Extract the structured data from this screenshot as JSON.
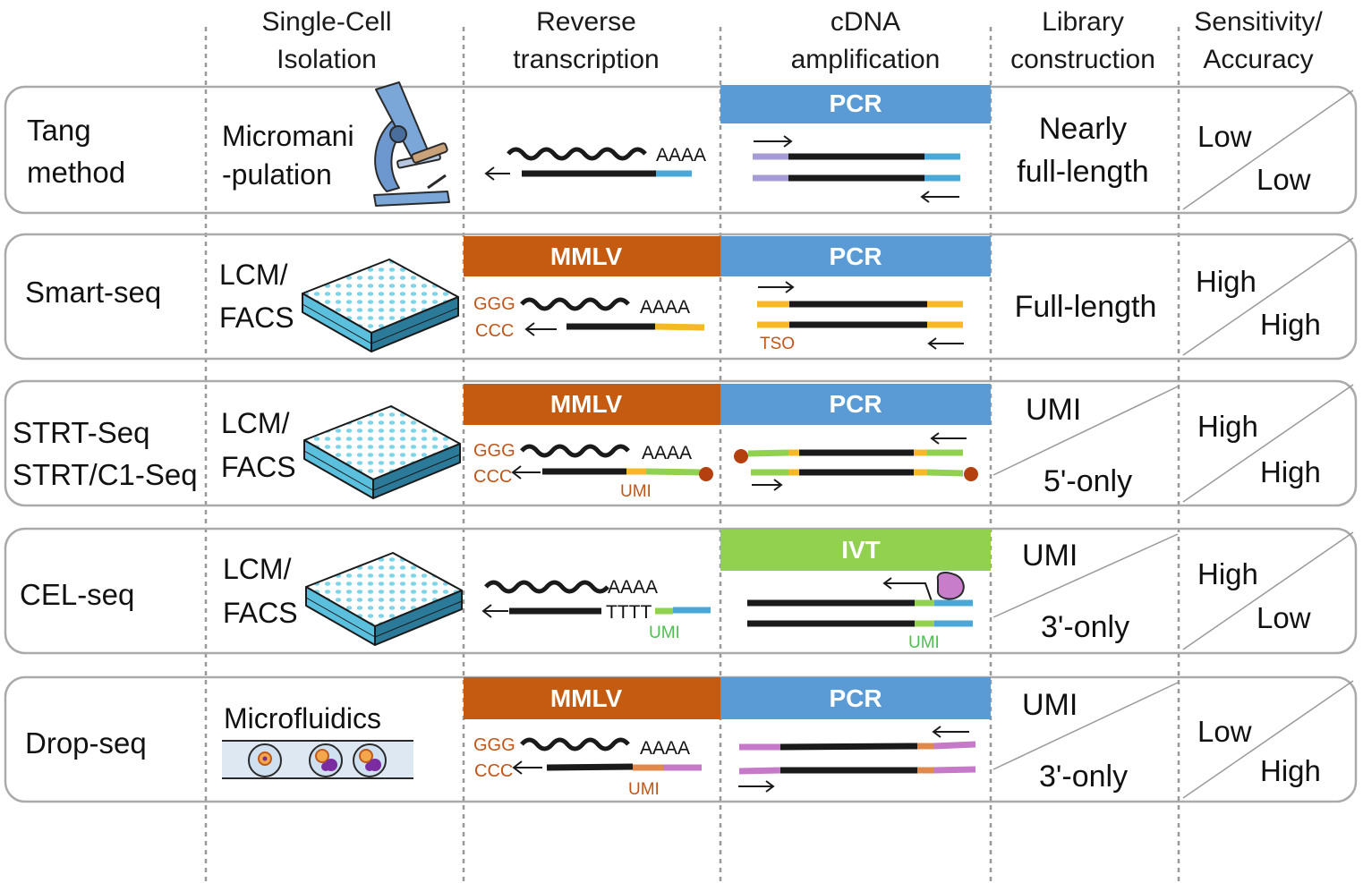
{
  "header": {
    "isolation": [
      "Single-Cell",
      "Isolation"
    ],
    "rt": [
      "Reverse",
      "transcription"
    ],
    "amp": [
      "cDNA",
      "amplification"
    ],
    "lib": [
      "Library",
      "construction"
    ],
    "sens": [
      "Sensitivity/",
      "Accuracy"
    ]
  },
  "colors": {
    "mmlv": "#c55a11",
    "pcr": "#5b9bd5",
    "ivt": "#92d050",
    "orange_text": "#c0561a",
    "umi_green": "#4fc04f",
    "umi_orange": "#c0561a"
  },
  "rows": [
    {
      "method": [
        "Tang",
        "method"
      ],
      "isolation": [
        "Micromani",
        "-pulation"
      ],
      "isolation_icon": "microscope-icon",
      "rt_band": "",
      "amp_band": "PCR",
      "rt_seq": {
        "polyA": "AAAA"
      },
      "lib": [
        "Nearly",
        "full-length"
      ],
      "sens": "Low",
      "acc": "Low"
    },
    {
      "method": [
        "Smart-seq"
      ],
      "isolation": [
        "LCM/",
        "FACS"
      ],
      "isolation_icon": "well-plate-icon",
      "rt_band": "MMLV",
      "amp_band": "PCR",
      "rt_seq": {
        "ggg": "GGG",
        "ccc": "CCC",
        "polyA": "AAAA"
      },
      "amp_label": "TSO",
      "lib": [
        "Full-length"
      ],
      "sens": "High",
      "acc": "High"
    },
    {
      "method": [
        "STRT-Seq",
        "STRT/C1-Seq"
      ],
      "isolation": [
        "LCM/",
        "FACS"
      ],
      "isolation_icon": "well-plate-icon",
      "rt_band": "MMLV",
      "amp_band": "PCR",
      "rt_seq": {
        "ggg": "GGG",
        "ccc": "CCC",
        "polyA": "AAAA",
        "umi": "UMI"
      },
      "lib_split": [
        "UMI",
        "5'-only"
      ],
      "sens": "High",
      "acc": "High"
    },
    {
      "method": [
        "CEL-seq"
      ],
      "isolation": [
        "LCM/",
        "FACS"
      ],
      "isolation_icon": "well-plate-icon",
      "rt_band": "",
      "amp_band": "IVT",
      "rt_seq": {
        "polyA": "AAAA",
        "polyT": "TTTT",
        "umi": "UMI"
      },
      "amp_label": "UMI",
      "lib_split": [
        "UMI",
        "3'-only"
      ],
      "sens": "High",
      "acc": "Low"
    },
    {
      "method": [
        "Drop-seq"
      ],
      "isolation": [
        "Microfluidics"
      ],
      "isolation_icon": "droplet-channel-icon",
      "rt_band": "MMLV",
      "amp_band": "PCR",
      "rt_seq": {
        "ggg": "GGG",
        "ccc": "CCC",
        "polyA": "AAAA",
        "umi": "UMI"
      },
      "lib_split": [
        "UMI",
        "3'-only"
      ],
      "sens": "Low",
      "acc": "High"
    }
  ]
}
